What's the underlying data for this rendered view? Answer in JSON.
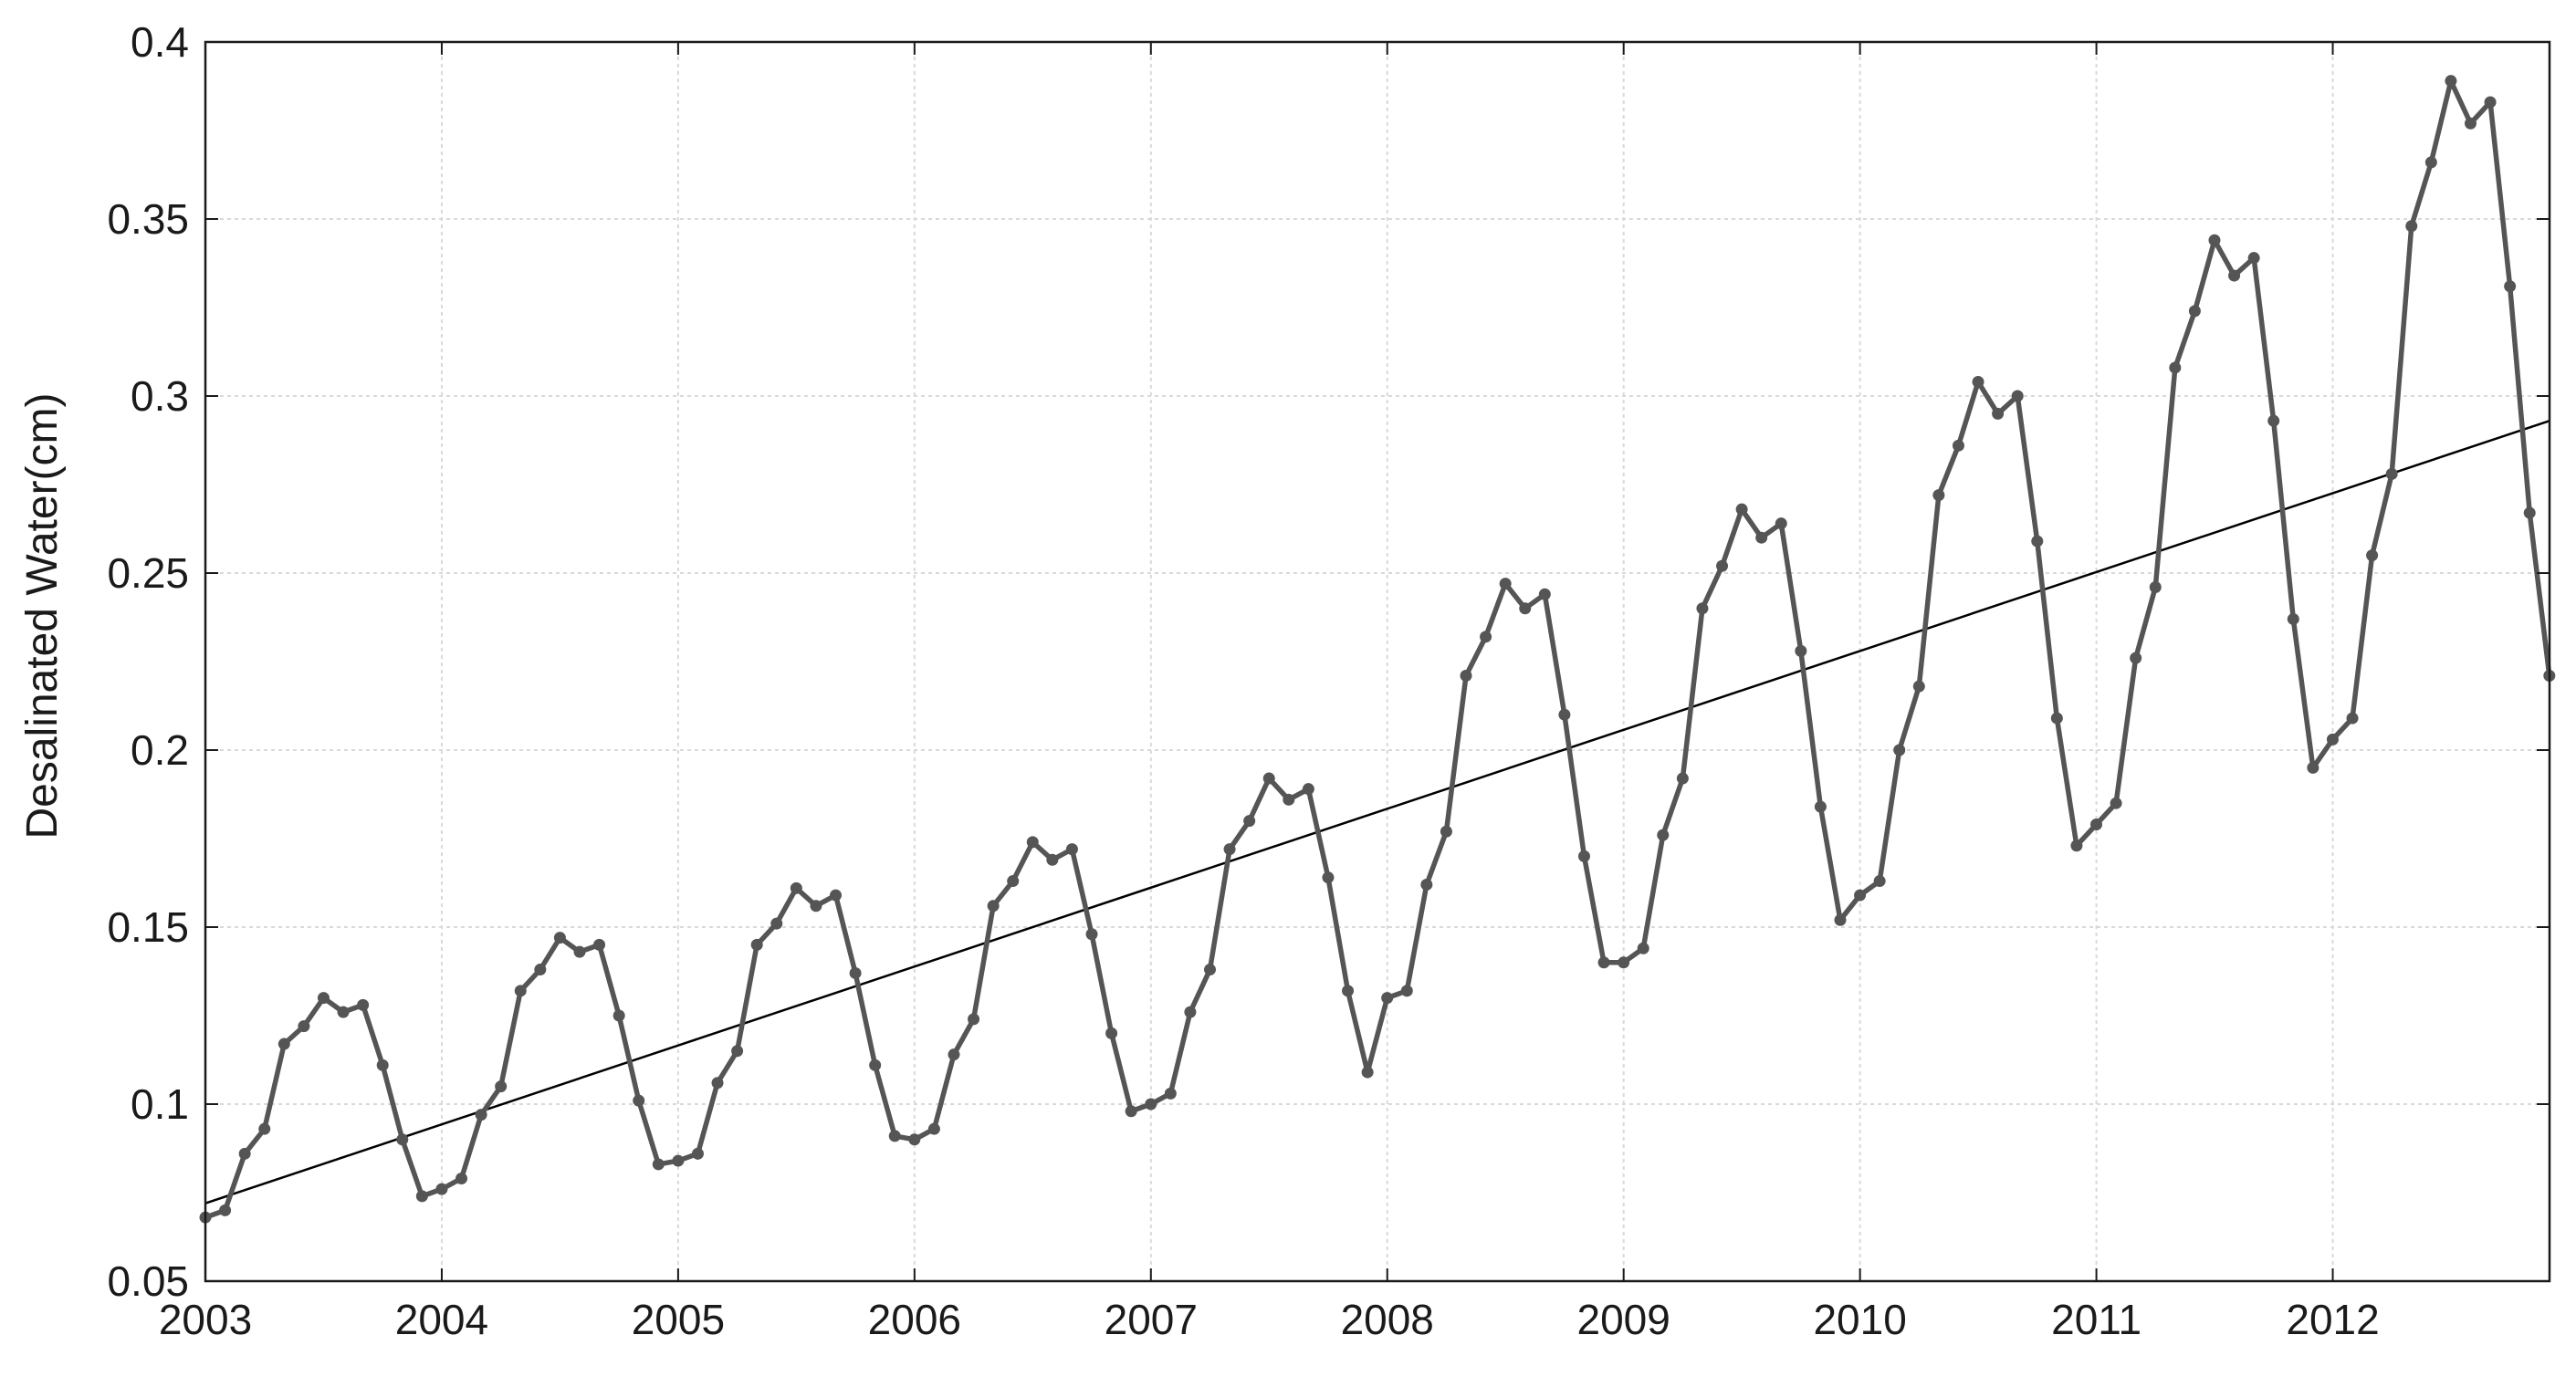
{
  "chart_data": {
    "type": "line",
    "title": "",
    "xlabel": "",
    "ylabel": "Desalinated Water(cm)",
    "xlim": [
      2003.0,
      2012.917
    ],
    "ylim": [
      0.05,
      0.4
    ],
    "grid": true,
    "legend": "none",
    "x_ticks": [
      "2003",
      "2004",
      "2005",
      "2006",
      "2007",
      "2008",
      "2009",
      "2010",
      "2011",
      "2012"
    ],
    "y_ticks": [
      "0.05",
      "0.1",
      "0.15",
      "0.2",
      "0.25",
      "0.3",
      "0.35",
      "0.4"
    ],
    "colors": {
      "series": "#555555",
      "trend": "#000000",
      "grid": "#d9d9d9",
      "axis": "#1a1a1a"
    },
    "series": [
      {
        "x_start": 2003.0,
        "x_step": 0.08333,
        "values": [
          0.068,
          0.07,
          0.086,
          0.093,
          0.117,
          0.122,
          0.13,
          0.126,
          0.128,
          0.111,
          0.09,
          0.074,
          0.076,
          0.079,
          0.097,
          0.105,
          0.132,
          0.138,
          0.147,
          0.143,
          0.145,
          0.125,
          0.101,
          0.083,
          0.084,
          0.086,
          0.106,
          0.115,
          0.145,
          0.151,
          0.161,
          0.156,
          0.159,
          0.137,
          0.111,
          0.091,
          0.09,
          0.093,
          0.114,
          0.124,
          0.156,
          0.163,
          0.174,
          0.169,
          0.172,
          0.148,
          0.12,
          0.098,
          0.1,
          0.103,
          0.126,
          0.138,
          0.172,
          0.18,
          0.192,
          0.186,
          0.189,
          0.164,
          0.132,
          0.109,
          0.13,
          0.132,
          0.162,
          0.177,
          0.221,
          0.232,
          0.247,
          0.24,
          0.244,
          0.21,
          0.17,
          0.14,
          0.14,
          0.144,
          0.176,
          0.192,
          0.24,
          0.252,
          0.268,
          0.26,
          0.264,
          0.228,
          0.184,
          0.152,
          0.159,
          0.163,
          0.2,
          0.218,
          0.272,
          0.286,
          0.304,
          0.295,
          0.3,
          0.259,
          0.209,
          0.173,
          0.179,
          0.185,
          0.226,
          0.246,
          0.308,
          0.324,
          0.344,
          0.334,
          0.339,
          0.293,
          0.237,
          0.195,
          0.203,
          0.209,
          0.255,
          0.278,
          0.348,
          0.366,
          0.389,
          0.377,
          0.383,
          0.331,
          0.267,
          0.221
        ]
      }
    ],
    "trend_line": {
      "x": [
        2003.0,
        2012.917
      ],
      "y": [
        0.072,
        0.293
      ]
    }
  }
}
